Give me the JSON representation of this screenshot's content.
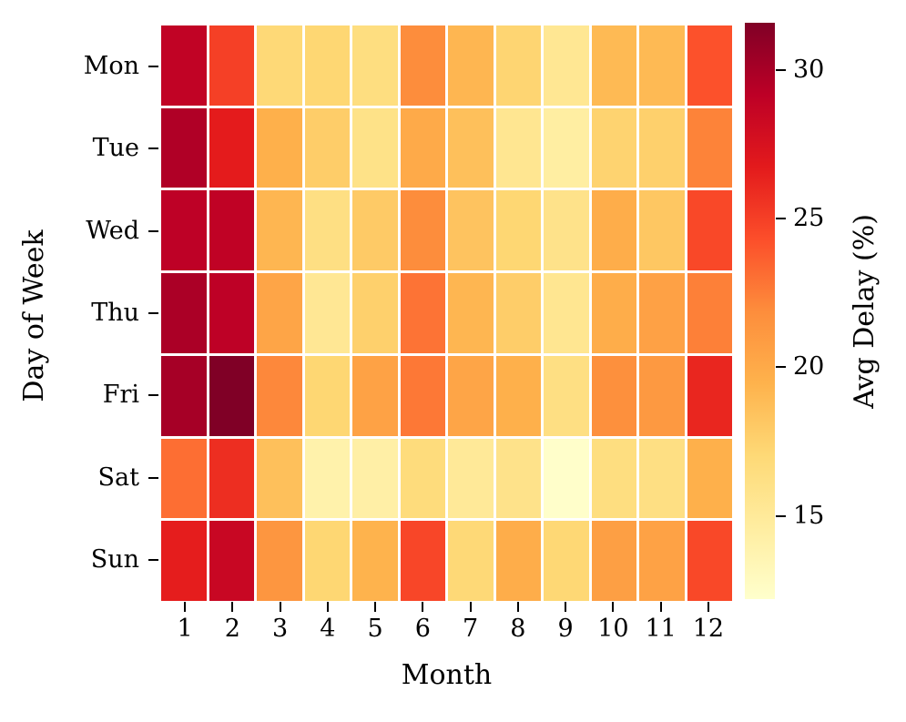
{
  "figure": {
    "background": "#ffffff",
    "tick_color": "#000000",
    "text_color": "#000000"
  },
  "chart_data": {
    "type": "heatmap",
    "xlabel": "Month",
    "ylabel": "Day of Week",
    "colorbar_label": "Avg Delay (%)",
    "x_categories": [
      "1",
      "2",
      "3",
      "4",
      "5",
      "6",
      "7",
      "8",
      "9",
      "10",
      "11",
      "12"
    ],
    "y_categories": [
      "Mon",
      "Tue",
      "Wed",
      "Thu",
      "Fri",
      "Sat",
      "Sun"
    ],
    "values": [
      [
        28.9,
        25.0,
        17.0,
        17.2,
        16.5,
        21.9,
        19.2,
        17.3,
        15.4,
        19.0,
        19.0,
        24.2
      ],
      [
        29.7,
        26.7,
        19.6,
        17.8,
        16.0,
        20.0,
        18.6,
        15.5,
        14.5,
        17.4,
        17.6,
        22.3
      ],
      [
        29.1,
        29.0,
        19.2,
        16.3,
        18.0,
        21.9,
        18.4,
        17.2,
        15.9,
        19.8,
        18.2,
        24.6
      ],
      [
        29.9,
        29.1,
        20.3,
        15.3,
        17.6,
        22.9,
        19.2,
        17.8,
        15.5,
        19.8,
        20.6,
        22.4
      ],
      [
        30.1,
        31.6,
        22.1,
        17.2,
        20.5,
        22.7,
        20.3,
        19.6,
        16.3,
        21.7,
        21.1,
        26.2
      ],
      [
        23.1,
        25.8,
        18.6,
        14.0,
        14.3,
        16.7,
        15.1,
        15.9,
        12.3,
        16.5,
        16.3,
        19.6
      ],
      [
        26.6,
        28.5,
        21.3,
        17.2,
        19.4,
        24.7,
        17.0,
        19.8,
        17.1,
        20.7,
        20.5,
        24.6
      ]
    ],
    "vmin": 12.2,
    "vmax": 31.6,
    "colorbar_ticks": [
      30,
      25,
      20,
      15
    ],
    "colormap": {
      "name": "YlOrRd",
      "stops": [
        "#FFFFCC",
        "#FFEDA0",
        "#FED976",
        "#FEB24C",
        "#FD8D3C",
        "#FC4E2A",
        "#E31A1C",
        "#BD0026",
        "#800026"
      ]
    },
    "cell_line_color": "#FFFFFF",
    "grid": false,
    "legend_position": "right-colorbar"
  }
}
